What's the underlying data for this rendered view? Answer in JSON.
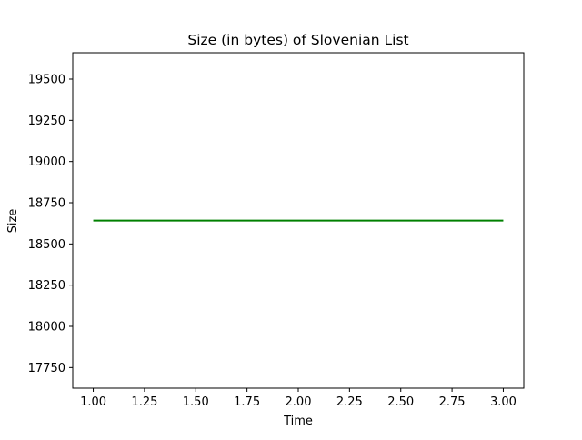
{
  "chart_data": {
    "type": "line",
    "title": "Size (in bytes) of Slovenian List",
    "xlabel": "Time",
    "ylabel": "Size",
    "xlim": [
      0.9,
      3.1
    ],
    "ylim": [
      17625,
      19660
    ],
    "x_ticks": [
      1.0,
      1.25,
      1.5,
      1.75,
      2.0,
      2.25,
      2.5,
      2.75,
      3.0
    ],
    "x_tick_labels": [
      "1.00",
      "1.25",
      "1.50",
      "1.75",
      "2.00",
      "2.25",
      "2.50",
      "2.75",
      "3.00"
    ],
    "y_ticks": [
      17750,
      18000,
      18250,
      18500,
      18750,
      19000,
      19250,
      19500
    ],
    "y_tick_labels": [
      "17750",
      "18000",
      "18250",
      "18500",
      "18750",
      "19000",
      "19250",
      "19500"
    ],
    "grid": false,
    "series": [
      {
        "color": "#008000",
        "x": [
          1,
          2,
          3
        ],
        "values": [
          18642,
          18642,
          18642
        ]
      }
    ]
  }
}
